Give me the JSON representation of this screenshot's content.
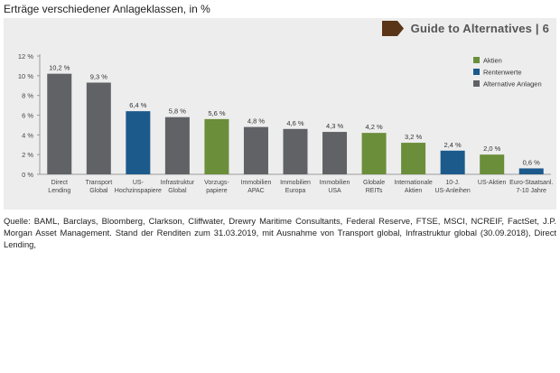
{
  "heading": "Erträge verschiedener Anlageklassen, in %",
  "guide_label": "Guide to Alternatives | 6",
  "colors": {
    "Aktien": "#6b8e3a",
    "Rentenwerte": "#1c5a8c",
    "Alternative Anlagen": "#606266",
    "panel": "#ededed",
    "guide_arrow": "#5a3517"
  },
  "chart_data": {
    "type": "bar",
    "ylim": [
      0,
      12
    ],
    "yticks": [
      0,
      2,
      4,
      6,
      8,
      10,
      12
    ],
    "ytick_labels": [
      "0 %",
      "2 %",
      "4 %",
      "6 %",
      "8 %",
      "10 %",
      "12 %"
    ],
    "grid": false,
    "legend_position": "top-right",
    "legend": [
      "Aktien",
      "Rentenwerte",
      "Alternative Anlagen"
    ],
    "categories": [
      [
        "Direct",
        "Lending"
      ],
      [
        "Transport",
        "Global"
      ],
      [
        "US-",
        "Hochzinspapiere"
      ],
      [
        "Infrastruktur",
        "Global"
      ],
      [
        "Vorzugs-",
        "papiere"
      ],
      [
        "Immobilien",
        "APAC"
      ],
      [
        "Immobilien",
        "Europa"
      ],
      [
        "Immobilien",
        "USA"
      ],
      [
        "Globale",
        "REITs"
      ],
      [
        "Internationale",
        "Aktien"
      ],
      [
        "10-J.",
        "US-Anleihen"
      ],
      [
        "US-Aktien"
      ],
      [
        "Euro-Staatsanl.",
        "7-10 Jahre"
      ]
    ],
    "values": [
      10.2,
      9.3,
      6.4,
      5.8,
      5.6,
      4.8,
      4.6,
      4.3,
      4.2,
      3.2,
      2.4,
      2.0,
      0.6
    ],
    "value_labels": [
      "10,2 %",
      "9,3 %",
      "6,4 %",
      "5,8 %",
      "5,6 %",
      "4,8 %",
      "4,6 %",
      "4,3 %",
      "4,2 %",
      "3,2 %",
      "2,4 %",
      "2,0 %",
      "0,6 %"
    ],
    "groups": [
      "Alternative Anlagen",
      "Alternative Anlagen",
      "Rentenwerte",
      "Alternative Anlagen",
      "Aktien",
      "Alternative Anlagen",
      "Alternative Anlagen",
      "Alternative Anlagen",
      "Aktien",
      "Aktien",
      "Rentenwerte",
      "Aktien",
      "Rentenwerte"
    ]
  },
  "source_text": "Quelle: BAML, Barclays, Bloomberg, Clarkson, Cliffwater, Drewry Maritime Consultants, Federal Reserve, FTSE, MSCI, NCREIF, FactSet, J.P. Morgan Asset Management. Stand der Renditen zum 31.03.2019, mit Ausnahme von Transport global, Infrastruktur global (30.09.2018), Direct Lending,"
}
